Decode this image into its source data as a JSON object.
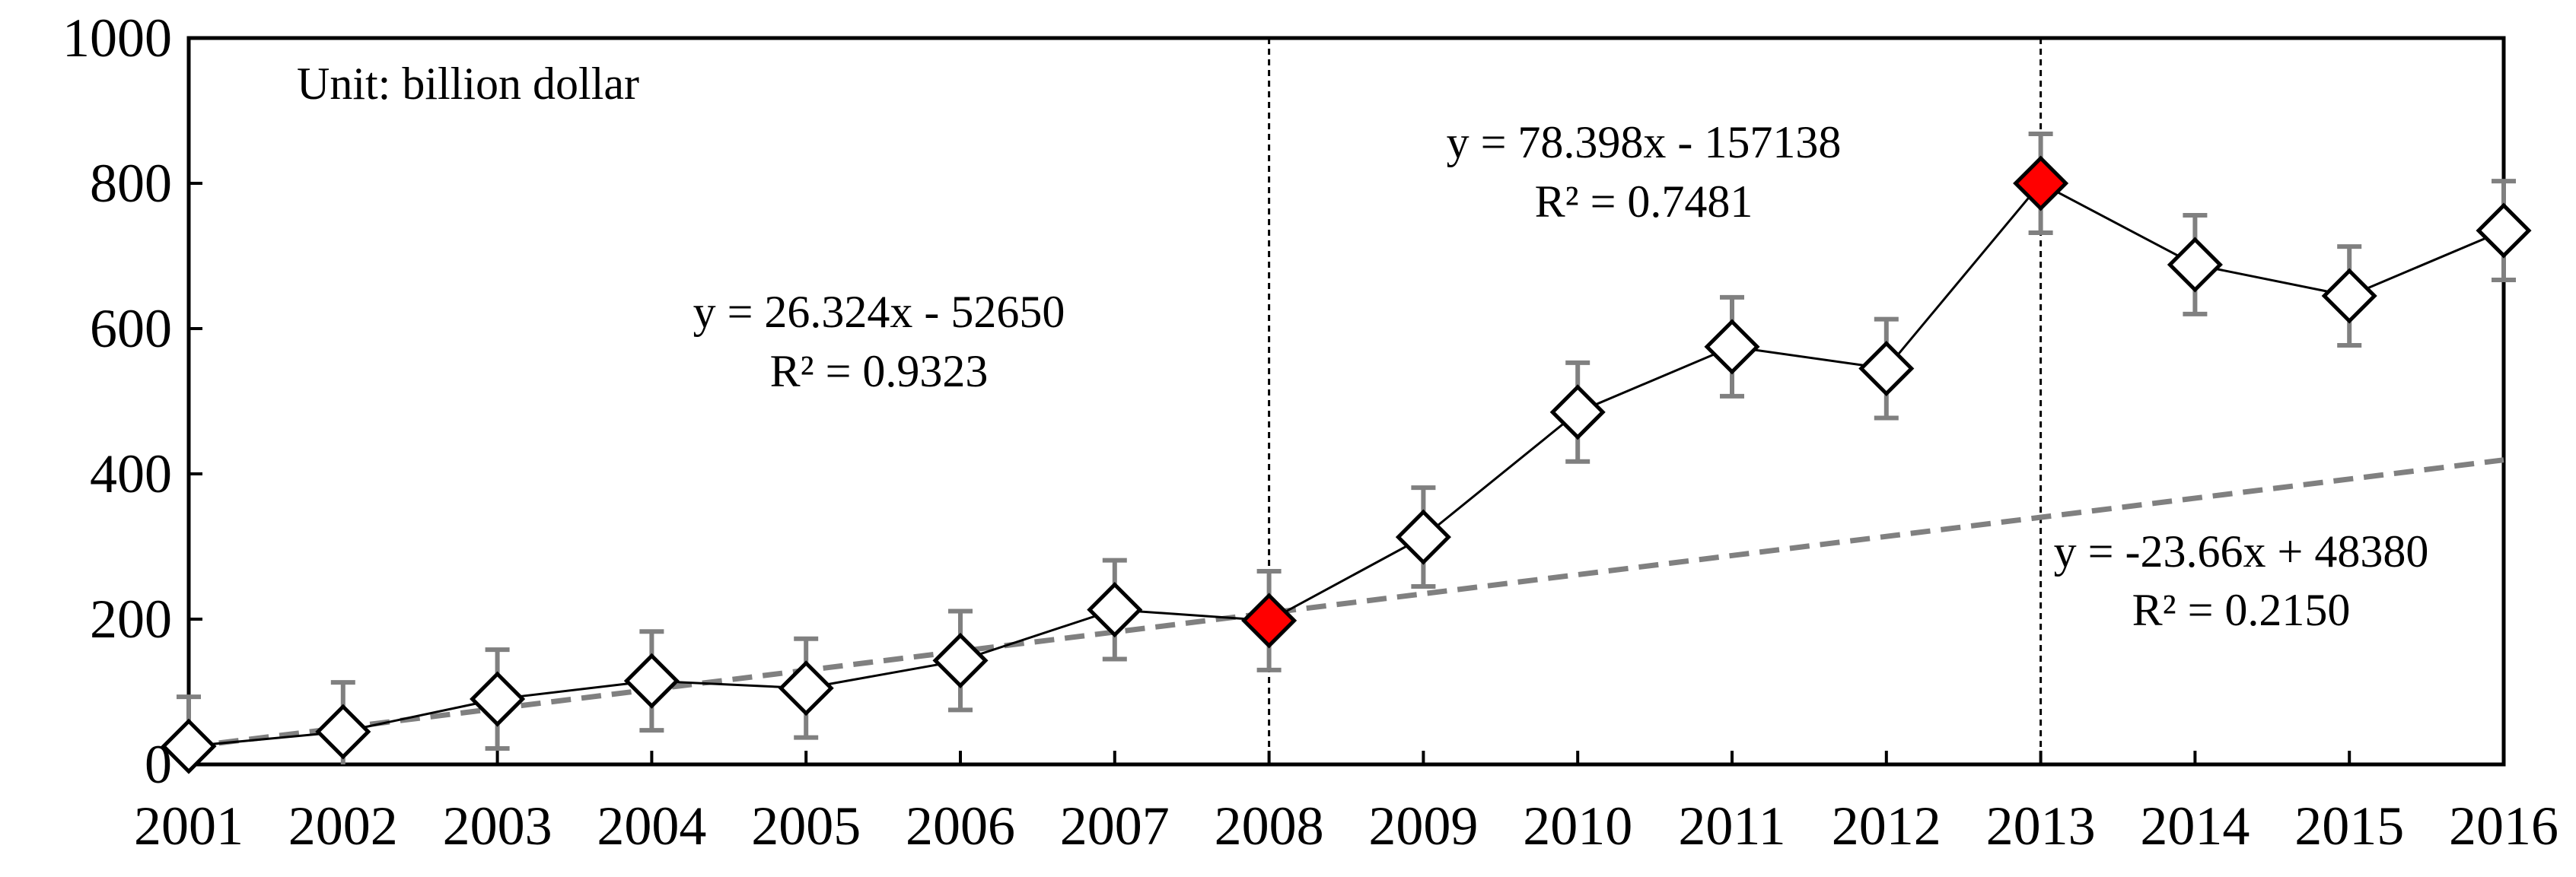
{
  "chart_data": {
    "type": "line",
    "title": "",
    "xlabel": "",
    "ylabel": "",
    "unit_note": "Unit: billion dollar",
    "x": [
      2001,
      2002,
      2003,
      2004,
      2005,
      2006,
      2007,
      2008,
      2009,
      2010,
      2011,
      2012,
      2013,
      2014,
      2015,
      2016
    ],
    "series": [
      {
        "values": [
          25,
          45,
          90,
          115,
          105,
          143,
          213,
          198,
          313,
          485,
          575,
          545,
          800,
          688,
          645,
          735
        ],
        "error": [
          68,
          68,
          68,
          68,
          68,
          68,
          68,
          68,
          68,
          68,
          68,
          68,
          68,
          68,
          68,
          68
        ],
        "highlight_years": [
          2008,
          2013
        ],
        "marker": "diamond",
        "line_color": "#000000",
        "highlight_color": "#ff0000",
        "error_color": "#808080"
      }
    ],
    "trendlines": [
      {
        "slope": 26.324,
        "intercept": -52650,
        "x_from": 2001,
        "x_to": 2016,
        "color": "#808080",
        "style": "dashed"
      }
    ],
    "equations": [
      {
        "text": "y = 26.324x - 52650",
        "r2": "R² = 0.9323"
      },
      {
        "text": "y = 78.398x - 157138",
        "r2": "R² = 0.7481"
      },
      {
        "text": "y = -23.66x + 48380",
        "r2": "R² = 0.2150"
      }
    ],
    "vertical_markers": [
      2008,
      2013
    ],
    "xlim": [
      2001,
      2016
    ],
    "ylim": [
      0,
      1000
    ],
    "yticks": [
      0,
      200,
      400,
      600,
      800,
      1000
    ],
    "grid": false,
    "legend": "none"
  }
}
